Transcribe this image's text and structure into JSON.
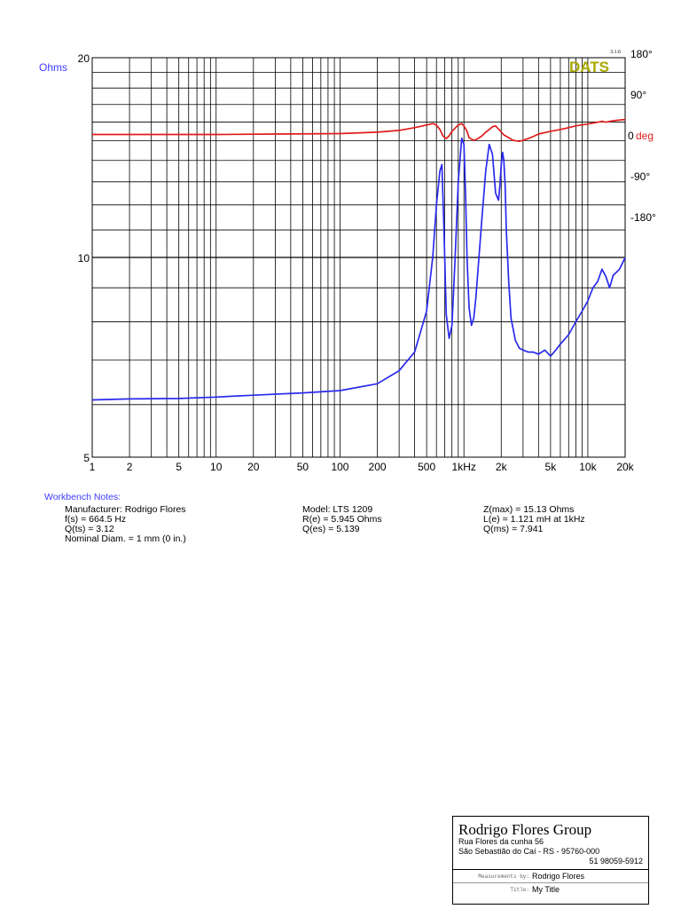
{
  "chart_data": {
    "type": "line",
    "x_scale": "log",
    "y_scale": "log",
    "xlim": [
      1,
      20000
    ],
    "ylim": [
      5,
      20
    ],
    "y2lim": [
      -180,
      180
    ],
    "xlabel": "",
    "ylabel": "Ohms",
    "y2label": "deg",
    "grid": true,
    "x_ticks": [
      {
        "v": 1,
        "label": "1"
      },
      {
        "v": 2,
        "label": "2"
      },
      {
        "v": 5,
        "label": "5"
      },
      {
        "v": 10,
        "label": "10"
      },
      {
        "v": 20,
        "label": "20"
      },
      {
        "v": 50,
        "label": "50"
      },
      {
        "v": 100,
        "label": "100"
      },
      {
        "v": 200,
        "label": "200"
      },
      {
        "v": 500,
        "label": "500"
      },
      {
        "v": 1000,
        "label": "1kHz"
      },
      {
        "v": 2000,
        "label": "2k"
      },
      {
        "v": 5000,
        "label": "5k"
      },
      {
        "v": 10000,
        "label": "10k"
      },
      {
        "v": 20000,
        "label": "20k"
      }
    ],
    "y_ticks": [
      {
        "v": 20,
        "label": "20"
      },
      {
        "v": 10,
        "label": "10"
      },
      {
        "v": 5,
        "label": "5"
      }
    ],
    "y2_ticks": [
      {
        "v": 180,
        "label": "180°"
      },
      {
        "v": 90,
        "label": "90°"
      },
      {
        "v": 0,
        "label": "0"
      },
      {
        "v": -90,
        "label": "-90°"
      },
      {
        "v": -180,
        "label": "-180°"
      }
    ],
    "series": [
      {
        "name": "Impedance",
        "axis": "left",
        "color": "#2a2aee",
        "x": [
          1,
          2,
          5,
          10,
          20,
          50,
          100,
          200,
          300,
          400,
          500,
          560,
          600,
          640,
          664.5,
          690,
          720,
          760,
          800,
          850,
          900,
          960,
          1000,
          1030,
          1060,
          1100,
          1150,
          1200,
          1250,
          1300,
          1400,
          1500,
          1600,
          1700,
          1800,
          1900,
          1950,
          2000,
          2050,
          2100,
          2150,
          2200,
          2300,
          2400,
          2600,
          2800,
          3000,
          3300,
          3600,
          4000,
          4500,
          5000,
          5500,
          6000,
          7000,
          8000,
          9000,
          10000,
          11000,
          12000,
          13000,
          14000,
          15000,
          16000,
          17000,
          18000,
          19000,
          20000
        ],
        "y": [
          6.1,
          6.12,
          6.13,
          6.16,
          6.2,
          6.25,
          6.3,
          6.45,
          6.75,
          7.2,
          8.3,
          10.0,
          12.0,
          13.5,
          13.8,
          11.0,
          8.2,
          7.55,
          7.9,
          10.0,
          13.0,
          15.13,
          14.8,
          12.5,
          10.0,
          8.4,
          7.9,
          8.1,
          8.7,
          9.6,
          11.5,
          13.5,
          14.8,
          14.3,
          12.5,
          12.2,
          12.8,
          13.8,
          14.4,
          14.0,
          12.8,
          11.0,
          9.2,
          8.1,
          7.5,
          7.3,
          7.25,
          7.2,
          7.2,
          7.15,
          7.25,
          7.1,
          7.25,
          7.4,
          7.65,
          8.0,
          8.3,
          8.6,
          9.0,
          9.2,
          9.6,
          9.35,
          9.0,
          9.4,
          9.5,
          9.6,
          9.8,
          10.0
        ]
      },
      {
        "name": "Phase",
        "axis": "right",
        "color": "#e01c1c",
        "x": [
          1,
          10,
          30,
          100,
          200,
          300,
          400,
          500,
          560,
          600,
          640,
          680,
          720,
          760,
          800,
          850,
          900,
          960,
          1000,
          1060,
          1100,
          1200,
          1300,
          1400,
          1500,
          1600,
          1700,
          1800,
          1950,
          2100,
          2300,
          2500,
          2800,
          3000,
          3300,
          3600,
          4000,
          5000,
          6000,
          7000,
          8000,
          10000,
          12000,
          13000,
          14000,
          15000,
          17000,
          20000
        ],
        "y": [
          1,
          1,
          2,
          3,
          6,
          10,
          16,
          22,
          25,
          22,
          12,
          -3,
          -8,
          -2,
          8,
          15,
          22,
          25,
          20,
          8,
          -6,
          -12,
          -8,
          -2,
          6,
          12,
          18,
          20,
          10,
          0,
          -6,
          -12,
          -14,
          -12,
          -8,
          -4,
          2,
          8,
          12,
          16,
          20,
          24,
          28,
          30,
          28,
          30,
          32,
          34
        ]
      }
    ]
  },
  "labels": {
    "ohms": "Ohms",
    "deg": "deg",
    "deg_zero": "0",
    "version": "3.1.6",
    "logo": "DATS"
  },
  "notes": {
    "title": "Workbench Notes:",
    "col1": [
      "Manufacturer: Rodrigo Flores",
      "f(s) = 664.5 Hz",
      "Q(ts) = 3.12",
      "Nominal Diam. = 1 mm (0 in.)"
    ],
    "col2": [
      "Model: LTS 1209",
      "R(e) = 5.945 Ohms",
      "Q(es) = 5.139"
    ],
    "col3": [
      "Z(max) = 15.13 Ohms",
      "L(e) = 1.121 mH at 1kHz",
      "Q(ms) = 7.941"
    ]
  },
  "titleblock": {
    "company": "Rodrigo Flores Group",
    "address1": "Rua Flores da cunha 56",
    "address2": "São Sebastião do Caí - RS - 95760-000",
    "phone": "51 98059-5912",
    "measured_by_label": "Measurements by:",
    "measured_by": "Rodrigo Flores",
    "title_label": "Title:",
    "title": "My Title"
  }
}
